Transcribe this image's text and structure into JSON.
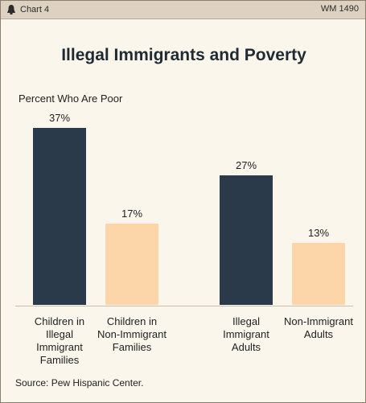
{
  "header": {
    "chart_tag": "Chart 4",
    "ref": "WM 1490"
  },
  "chart_data": {
    "type": "bar",
    "title": "Illegal Immigrants and Poverty",
    "ylabel": "Percent Who Are Poor",
    "ylim": [
      0,
      37
    ],
    "categories": [
      "Children in Illegal Immigrant Families",
      "Children in Non-Immigrant Families",
      "Illegal Immigrant Adults",
      "Non-Immigrant Adults"
    ],
    "category_lines": [
      [
        "Children in",
        "Illegal",
        "Immigrant",
        "Families"
      ],
      [
        "Children in",
        "Non-Immigrant",
        "Families"
      ],
      [
        "Illegal",
        "Immigrant",
        "Adults"
      ],
      [
        "Non-Immigrant",
        "Adults"
      ]
    ],
    "values": [
      37,
      17,
      27,
      13
    ],
    "value_labels": [
      "37%",
      "17%",
      "27%",
      "13%"
    ],
    "bar_colors": [
      "#2b3a4a",
      "#fcd6a8",
      "#2b3a4a",
      "#fcd6a8"
    ],
    "grid": false
  },
  "source": "Source: Pew Hispanic Center."
}
